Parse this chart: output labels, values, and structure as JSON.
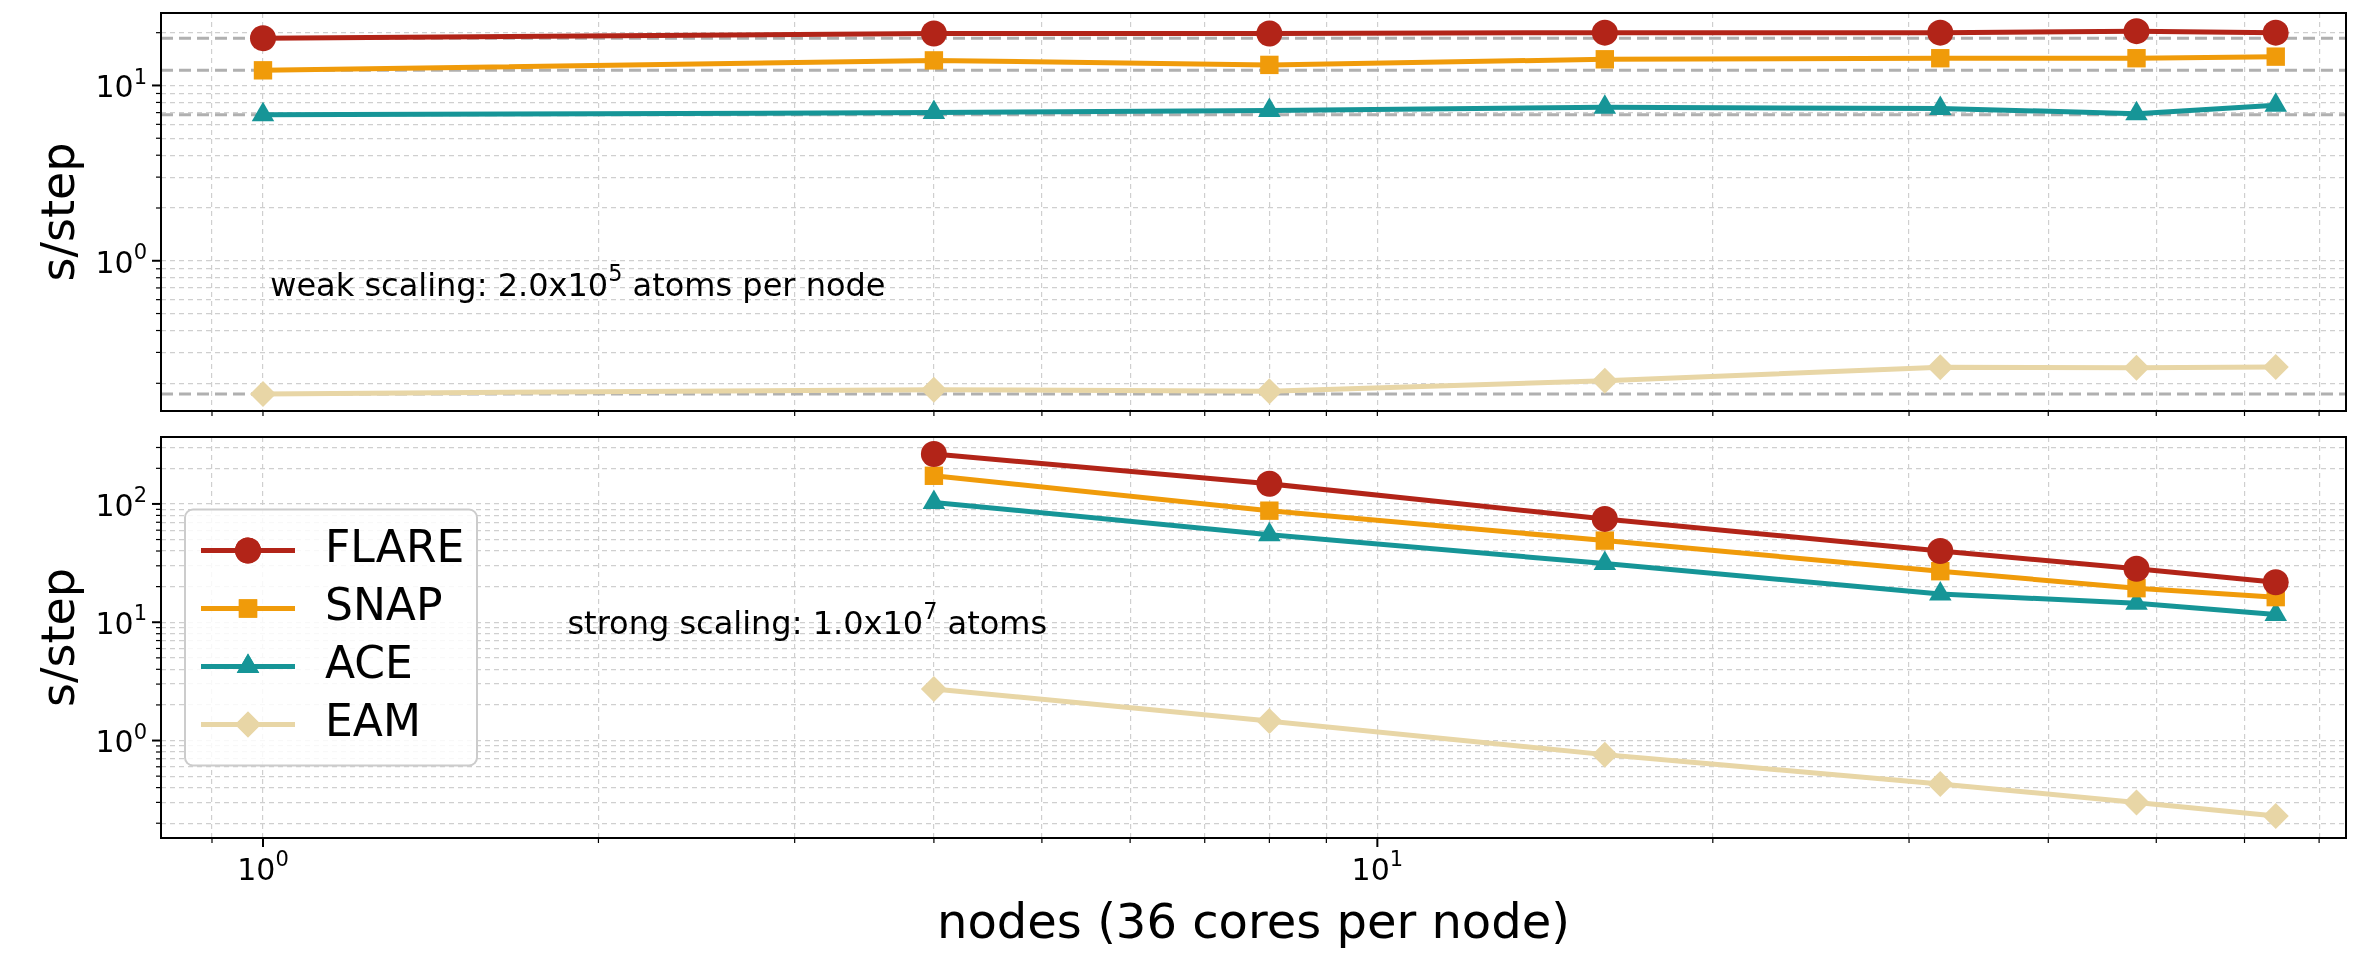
{
  "chart_data": [
    {
      "type": "line",
      "x": [
        1,
        4,
        8,
        16,
        32,
        48,
        64
      ],
      "ylabel": "s/step",
      "series": [
        {
          "color": "#b22418",
          "marker": "circle",
          "values": [
            18.6,
            19.8,
            19.8,
            20.0,
            20.0,
            20.4,
            20.0
          ]
        },
        {
          "color": "#f09b0a",
          "marker": "square",
          "values": [
            12.2,
            13.9,
            13.1,
            14.1,
            14.3,
            14.3,
            14.6
          ]
        },
        {
          "color": "#169597",
          "marker": "triangle",
          "values": [
            6.8,
            7.0,
            7.2,
            7.5,
            7.4,
            6.9,
            7.7
          ]
        },
        {
          "color": "#e8d6a6",
          "marker": "diamond",
          "values": [
            0.174,
            0.184,
            0.18,
            0.207,
            0.247,
            0.245,
            0.248
          ]
        }
      ],
      "ref_lines": [
        {
          "axis": "y",
          "value": 18.6,
          "color": "#b0b0b0",
          "line_style": "dashed"
        },
        {
          "axis": "y",
          "value": 12.2,
          "color": "#b0b0b0",
          "line_style": "dashed"
        },
        {
          "axis": "y",
          "value": 6.8,
          "color": "#b0b0b0",
          "line_style": "dashed"
        },
        {
          "axis": "y",
          "value": 0.174,
          "color": "#b0b0b0",
          "line_style": "dashed"
        }
      ],
      "annotations": [
        "weak scaling: 2.0x10$^{5}$ atoms per node"
      ],
      "log": "xy",
      "grid": true,
      "legend": false,
      "tick_labels": "y",
      "xlim": [
        0.81,
        74
      ],
      "ylim": [
        0.139,
        25.9
      ],
      "xticks": [
        {
          "value": 0.9,
          "label": null
        },
        {
          "value": 1,
          "label": null
        },
        {
          "value": 2,
          "label": null
        },
        {
          "value": 3,
          "label": null
        },
        {
          "value": 4,
          "label": null
        },
        {
          "value": 5,
          "label": null
        },
        {
          "value": 6,
          "label": null
        },
        {
          "value": 7,
          "label": null
        },
        {
          "value": 8,
          "label": null
        },
        {
          "value": 9,
          "label": null
        },
        {
          "value": 10,
          "label": null
        },
        {
          "value": 20,
          "label": null
        },
        {
          "value": 30,
          "label": null
        },
        {
          "value": 40,
          "label": null
        },
        {
          "value": 50,
          "label": null
        },
        {
          "value": 60,
          "label": null
        },
        {
          "value": 70,
          "label": null
        }
      ],
      "yticks": [
        {
          "value": 0.2,
          "label": null
        },
        {
          "value": 0.3,
          "label": null
        },
        {
          "value": 0.4,
          "label": null
        },
        {
          "value": 0.5,
          "label": null
        },
        {
          "value": 0.6,
          "label": null
        },
        {
          "value": 0.7,
          "label": null
        },
        {
          "value": 0.8,
          "label": null
        },
        {
          "value": 0.9,
          "label": null
        },
        {
          "value": 1,
          "label": "10$^{0}$"
        },
        {
          "value": 2,
          "label": null
        },
        {
          "value": 3,
          "label": null
        },
        {
          "value": 4,
          "label": null
        },
        {
          "value": 5,
          "label": null
        },
        {
          "value": 6,
          "label": null
        },
        {
          "value": 7,
          "label": null
        },
        {
          "value": 8,
          "label": null
        },
        {
          "value": 9,
          "label": null
        },
        {
          "value": 10,
          "label": "10$^{1}$"
        },
        {
          "value": 20,
          "label": null
        }
      ]
    },
    {
      "type": "line",
      "x": [
        4,
        8,
        16,
        32,
        48,
        64
      ],
      "ylabel": "s/step",
      "xlabel": "nodes (36 cores per node)",
      "series": [
        {
          "name": "FLARE",
          "color": "#b22418",
          "marker": "circle",
          "values": [
            264,
            148,
            74.7,
            40,
            28.3,
            21.8
          ]
        },
        {
          "name": "SNAP",
          "color": "#f09b0a",
          "marker": "square",
          "values": [
            173,
            87.7,
            49,
            27,
            19.4,
            16.3
          ]
        },
        {
          "name": "ACE",
          "color": "#169597",
          "marker": "triangle",
          "values": [
            103,
            55,
            31.3,
            17.3,
            14.5,
            11.6
          ]
        },
        {
          "name": "EAM",
          "color": "#e8d6a6",
          "marker": "diamond",
          "values": [
            2.73,
            1.46,
            0.76,
            0.43,
            0.3,
            0.23
          ]
        }
      ],
      "annotations": [
        "strong scaling: 1.0x10$^{7}$ atoms"
      ],
      "log": "xy",
      "grid": true,
      "legend": "left",
      "xlim": [
        0.81,
        74
      ],
      "ylim": [
        0.15,
        368
      ],
      "xticks": [
        {
          "value": 0.9,
          "label": null
        },
        {
          "value": 1,
          "label": "10$^{0}$"
        },
        {
          "value": 2,
          "label": null
        },
        {
          "value": 3,
          "label": null
        },
        {
          "value": 4,
          "label": null
        },
        {
          "value": 5,
          "label": null
        },
        {
          "value": 6,
          "label": null
        },
        {
          "value": 7,
          "label": null
        },
        {
          "value": 8,
          "label": null
        },
        {
          "value": 9,
          "label": null
        },
        {
          "value": 10,
          "label": "10$^{1}$"
        },
        {
          "value": 20,
          "label": null
        },
        {
          "value": 30,
          "label": null
        },
        {
          "value": 40,
          "label": null
        },
        {
          "value": 50,
          "label": null
        },
        {
          "value": 60,
          "label": null
        },
        {
          "value": 70,
          "label": null
        }
      ],
      "yticks": [
        {
          "value": 0.2,
          "label": null
        },
        {
          "value": 0.3,
          "label": null
        },
        {
          "value": 0.4,
          "label": null
        },
        {
          "value": 0.5,
          "label": null
        },
        {
          "value": 0.6,
          "label": null
        },
        {
          "value": 0.7,
          "label": null
        },
        {
          "value": 0.8,
          "label": null
        },
        {
          "value": 0.9,
          "label": null
        },
        {
          "value": 1,
          "label": "10$^{0}$"
        },
        {
          "value": 2,
          "label": null
        },
        {
          "value": 3,
          "label": null
        },
        {
          "value": 4,
          "label": null
        },
        {
          "value": 5,
          "label": null
        },
        {
          "value": 6,
          "label": null
        },
        {
          "value": 7,
          "label": null
        },
        {
          "value": 8,
          "label": null
        },
        {
          "value": 9,
          "label": null
        },
        {
          "value": 10,
          "label": "10$^{1}$"
        },
        {
          "value": 20,
          "label": null
        },
        {
          "value": 30,
          "label": null
        },
        {
          "value": 40,
          "label": null
        },
        {
          "value": 50,
          "label": null
        },
        {
          "value": 60,
          "label": null
        },
        {
          "value": 70,
          "label": null
        },
        {
          "value": 80,
          "label": null
        },
        {
          "value": 90,
          "label": null
        },
        {
          "value": 100,
          "label": "10$^{2}$"
        },
        {
          "value": 200,
          "label": null
        },
        {
          "value": 300,
          "label": null
        }
      ]
    }
  ]
}
